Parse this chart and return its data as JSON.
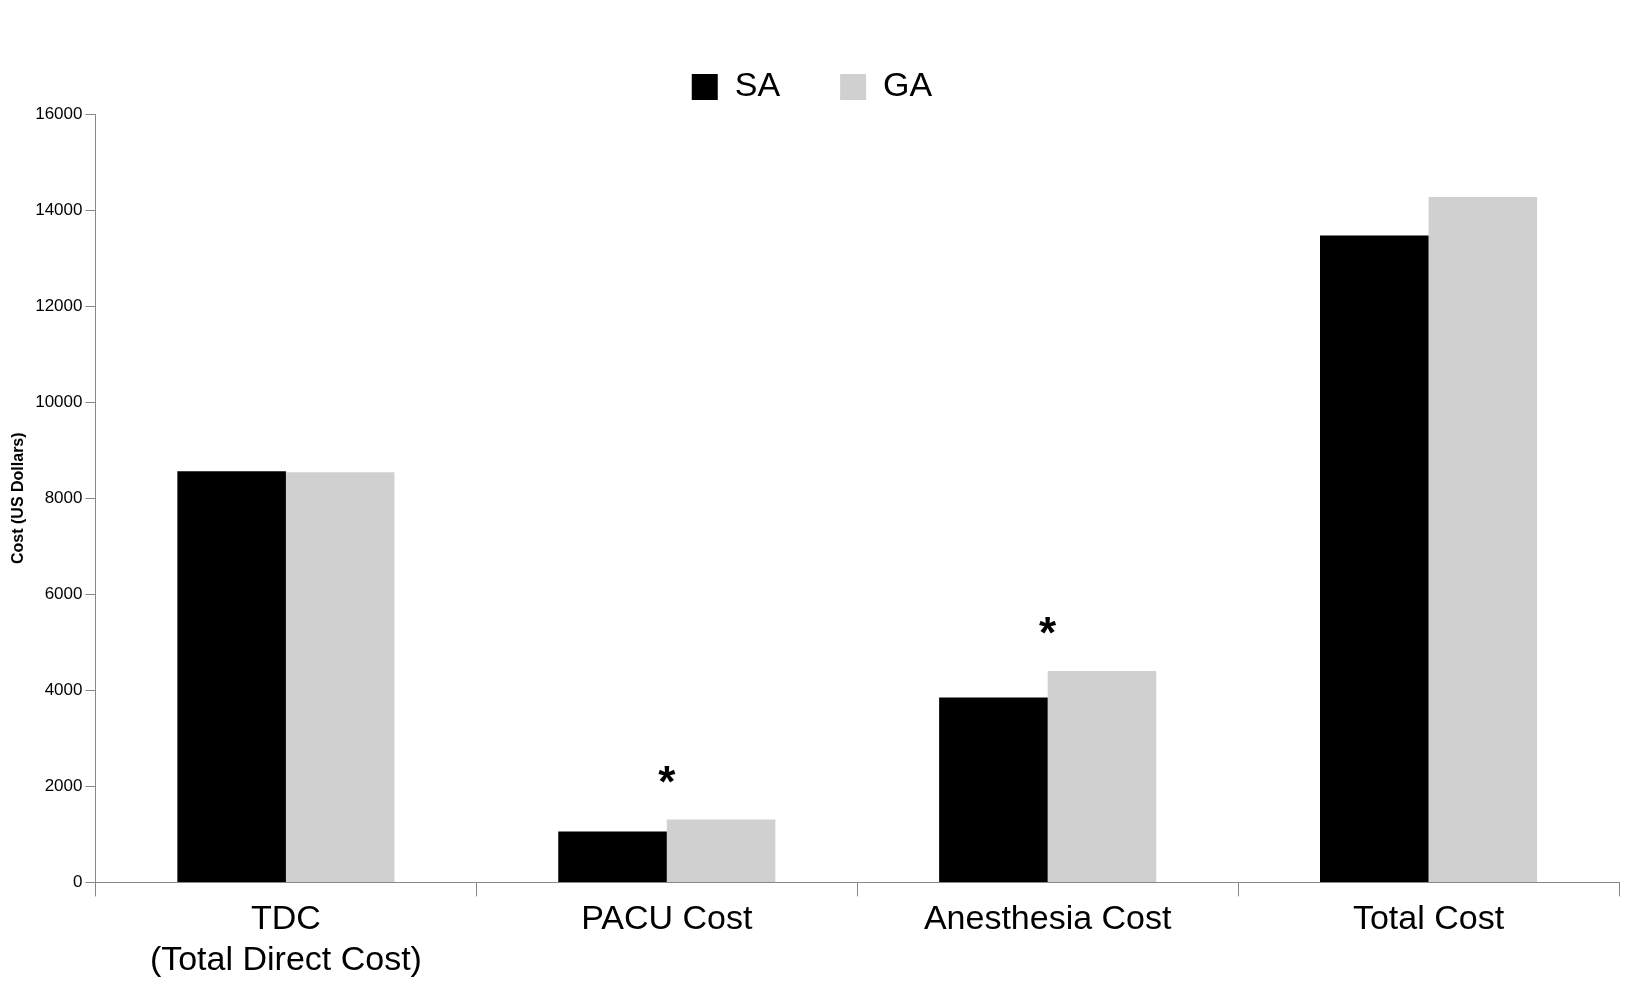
{
  "chart_data": {
    "type": "bar",
    "ylabel": "Cost (US Dollars)",
    "categories": [
      "TDC\n(Total Direct Cost)",
      "PACU Cost",
      "Anesthesia Cost",
      "Total Cost"
    ],
    "series": [
      {
        "name": "SA",
        "color": "#000000",
        "values": [
          8560,
          1060,
          3850,
          13470
        ]
      },
      {
        "name": "GA",
        "color": "#d0d0d0",
        "values": [
          8540,
          1310,
          4400,
          14270
        ]
      }
    ],
    "ylim": [
      0,
      16000
    ],
    "yticks": [
      0,
      2000,
      4000,
      6000,
      8000,
      10000,
      12000,
      14000,
      16000
    ],
    "grid": false,
    "legend": "top",
    "annotations": [
      "*",
      "*"
    ]
  }
}
